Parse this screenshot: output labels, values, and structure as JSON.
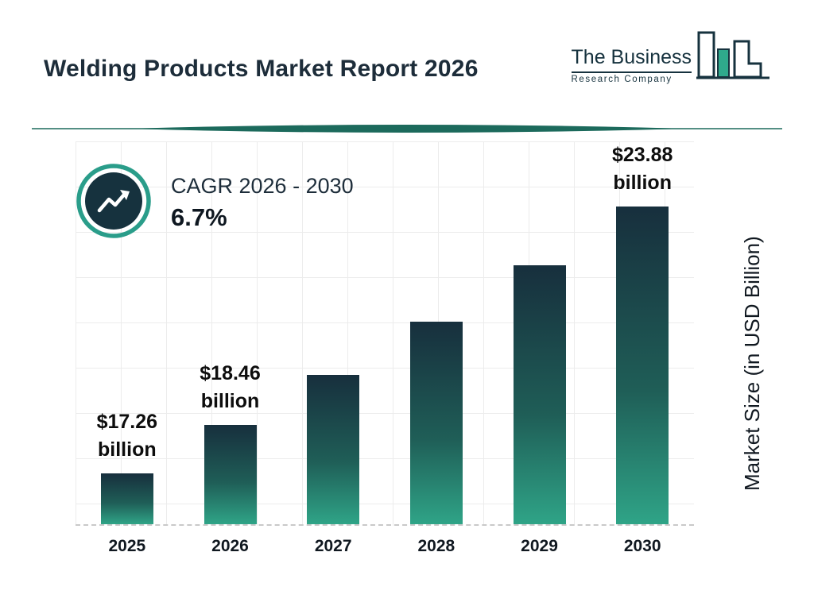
{
  "header": {
    "title": "Welding Products Market Report 2026",
    "logo": {
      "name_line1": "The Business",
      "name_line2": "Research Company"
    }
  },
  "cagr": {
    "label": "CAGR 2026 - 2030",
    "value": "6.7%"
  },
  "chart_data": {
    "type": "bar",
    "title": "Welding Products Market Report 2026",
    "categories": [
      "2025",
      "2026",
      "2027",
      "2028",
      "2029",
      "2030"
    ],
    "values": [
      17.26,
      18.46,
      19.7,
      21.02,
      22.42,
      23.88
    ],
    "bar_labels": [
      {
        "line1": "$17.26",
        "line2": "billion"
      },
      {
        "line1": "$18.46",
        "line2": "billion"
      },
      null,
      null,
      null,
      {
        "line1": "$23.88",
        "line2": "billion"
      }
    ],
    "xlabel": "",
    "ylabel": "Market Size (in USD Billion)",
    "ylim": [
      16,
      25.5
    ],
    "grid": true,
    "legend": "none",
    "colors": {
      "bar_top": "#172f3d",
      "bar_bottom": "#2fa487",
      "accent_teal": "#2a9d8a",
      "dark_navy": "#16323e",
      "divider": "#1c6a5c"
    }
  }
}
